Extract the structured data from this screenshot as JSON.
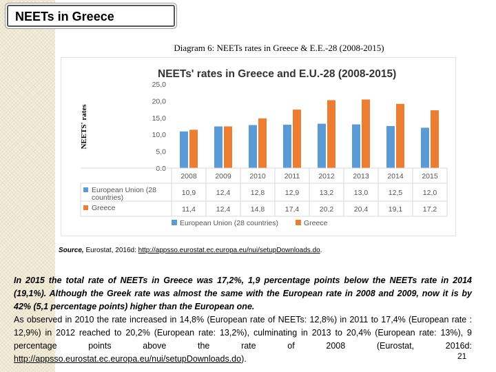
{
  "slide": {
    "title": "NEETs in Greece",
    "diagram_caption": "Diagram 6: NEETs rates in Greece & E.E.-28 (2008-2015)",
    "source_label": "Source,",
    "source_text": " Eurostat, 2016d: ",
    "source_link": "http://appsso.eurostat.ec.europa.eu/nui/setupDownloads.do",
    "source_end": ".",
    "paragraph1": "In 2015  the total rate of NEETs in Greece was 17,2%, 1,9 percentage points below the NEETs rate in 2014 (19,1%). Although the Greek rate was almost the same with the European rate in 2008 and 2009, now it is by 42% (5,1 percentage points) higher than the European one.",
    "paragraph2": "As observed in 2010 the rate increased in 14,8% (European rate of NEETs: 12,8%) in 2011 to 17,4% (European rate : 12,9%) in 2012 reached to 20,2% (European rate: 13,2%), culminating in 2013 to 20,4% (European rate: 13%), 9 percentage points above the rate of 2008 (Eurostat, 2016d: ",
    "paragraph2_link": "http://appsso.eurostat.ec.europa.eu/nui/setupDownloads.do",
    "paragraph2_end": ").",
    "page_number": "21"
  },
  "chart_data": {
    "type": "bar",
    "title": "NEETs' rates in Greece and E.U.-28 (2008-2015)",
    "ylabel": "NEETS' rates",
    "xlabel": "",
    "ylim": [
      0,
      25
    ],
    "yticks": [
      "0.0",
      "5,0",
      "10,0",
      "15,0",
      "20,0",
      "25,0"
    ],
    "categories": [
      "2008",
      "2009",
      "2010",
      "2011",
      "2012",
      "2013",
      "2014",
      "2015"
    ],
    "series": [
      {
        "name": "European Union (28 countries)",
        "table_label": [
          "European Union (28",
          "countries)"
        ],
        "color": "#5b9bd5",
        "values": [
          10.9,
          12.4,
          12.8,
          12.9,
          13.2,
          13.0,
          12.5,
          12.0
        ],
        "value_labels": [
          "10,9",
          "12,4",
          "12,8",
          "12,9",
          "13,2",
          "13,0",
          "12,5",
          "12,0"
        ]
      },
      {
        "name": "Greece",
        "table_label": [
          "Greece"
        ],
        "color": "#ed7d31",
        "values": [
          11.4,
          12.4,
          14.8,
          17.4,
          20.2,
          20.4,
          19.1,
          17.2
        ],
        "value_labels": [
          "11,4",
          "12,4",
          "14,8",
          "17,4",
          "20,2",
          "20,4",
          "19,1",
          "17,2"
        ]
      }
    ],
    "grid": false,
    "legend": "bottom"
  }
}
